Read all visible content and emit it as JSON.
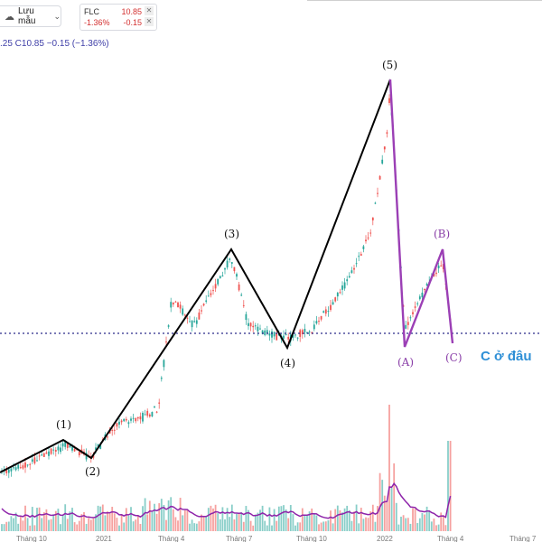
{
  "toolbar": {
    "save_label": "Lưu mẫu",
    "symbol": "FLC",
    "price": "10.85",
    "change_pct": "-1.36%",
    "change_abs": "-0.15"
  },
  "ohlc_line": ".25 C10.85 −0.15 (−1.36%)",
  "waves": {
    "w1": "(1)",
    "w2": "(2)",
    "w3": "(3)",
    "w4": "(4)",
    "w5": "(5)",
    "wA": "(A)",
    "wB": "(B)",
    "wC": "(C)"
  },
  "annotation": "C ở đâu",
  "x_axis": [
    "Tháng 10",
    "2021",
    "Tháng 4",
    "Tháng 7",
    "Tháng 10",
    "2022",
    "Tháng 4",
    "Tháng 7"
  ],
  "colors": {
    "up": "#26a69a",
    "down": "#ef5350",
    "wave": "#000000",
    "correction": "#9b3fb5",
    "annotation": "#2e8fd6",
    "ma": "#8e24aa"
  }
}
